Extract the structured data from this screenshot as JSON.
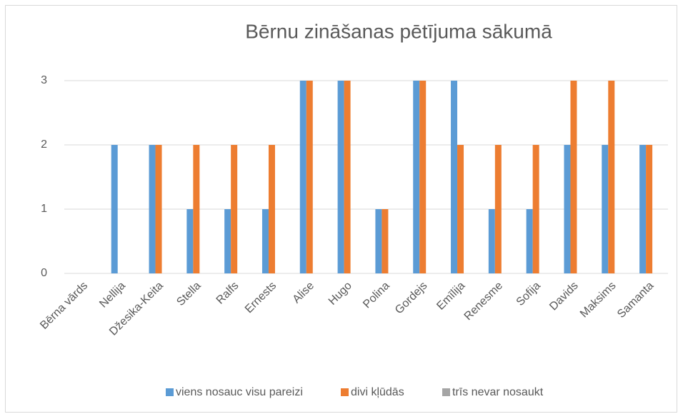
{
  "chart_data": {
    "type": "bar",
    "title": "Bērnu zināšanas pētījuma sākumā",
    "categories": [
      "Bērna vārds",
      "Nellija",
      "Džesika-Keita",
      "Stella",
      "Ralfs",
      "Ernests",
      "Alise",
      "Hugo",
      "Polina",
      "Gordejs",
      "Emīlija",
      "Renesme",
      "Sofija",
      "Davids",
      "Maksims",
      "Samanta"
    ],
    "series": [
      {
        "name": "viens nosauc visu pareizi",
        "color": "#5b9bd5",
        "values": [
          null,
          2,
          2,
          1,
          1,
          1,
          3,
          3,
          1,
          3,
          3,
          1,
          1,
          2,
          2,
          2
        ]
      },
      {
        "name": "divi kļūdās",
        "color": "#ed7d31",
        "values": [
          null,
          null,
          2,
          2,
          2,
          2,
          3,
          3,
          1,
          3,
          2,
          2,
          2,
          3,
          3,
          2
        ]
      },
      {
        "name": "trīs nevar nosaukt",
        "color": "#a5a5a5",
        "values": [
          null,
          null,
          null,
          null,
          null,
          null,
          null,
          null,
          null,
          null,
          null,
          null,
          null,
          null,
          null,
          null
        ]
      }
    ],
    "ylim": [
      0,
      3
    ],
    "yticks": [
      0,
      1,
      2,
      3
    ],
    "grid": true,
    "legend": "bottom"
  }
}
